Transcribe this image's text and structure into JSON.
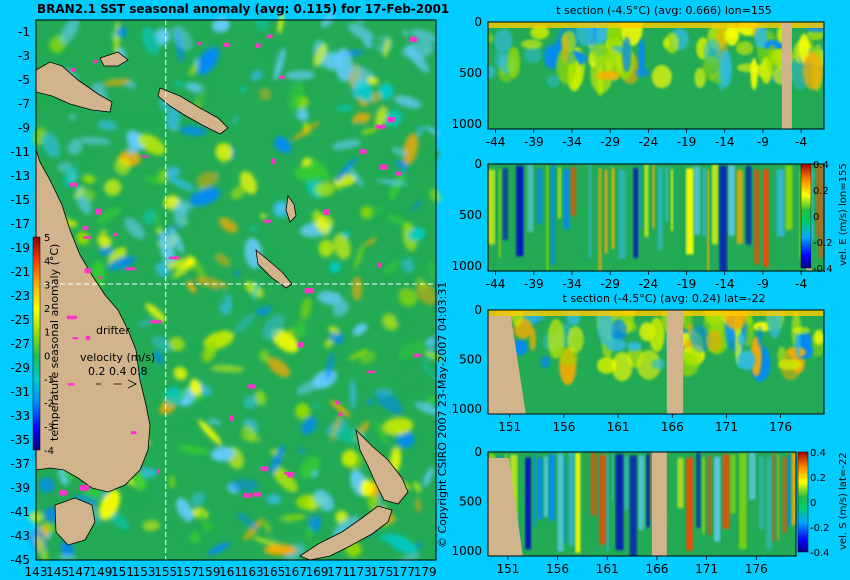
{
  "colors": {
    "background": "#00ccff",
    "land": "#d2b48c",
    "drifter": "#ff33cc",
    "ocean_base": "#22aa55",
    "colormap": [
      "#000080",
      "#0000ff",
      "#0088ff",
      "#00cccc",
      "#00cc66",
      "#33cc33",
      "#99dd00",
      "#ffff00",
      "#ffaa00",
      "#ff5500",
      "#cc0000",
      "#800000"
    ]
  },
  "copyright": "© Copyright CSIRO 2007   23-May-2007 04:03:31",
  "chart_data": [
    {
      "type": "heatmap",
      "panel": "map",
      "title": "BRAN2.1 SST seasonal anomaly (avg: 0.115) for 17-Feb-2001",
      "xlabel": "",
      "ylabel": "",
      "x_ticks": [
        "143",
        "145",
        "147",
        "149",
        "151",
        "153",
        "155",
        "157",
        "159",
        "161",
        "163",
        "165",
        "167",
        "169",
        "171",
        "173",
        "175",
        "177",
        "179"
      ],
      "y_ticks": [
        "-1",
        "-3",
        "-5",
        "-7",
        "-9",
        "-11",
        "-13",
        "-15",
        "-17",
        "-19",
        "-21",
        "-23",
        "-25",
        "-27",
        "-29",
        "-31",
        "-33",
        "-35",
        "-37",
        "-39",
        "-41",
        "-43",
        "-45"
      ],
      "xlim": [
        143,
        180
      ],
      "ylim": [
        -45,
        0
      ],
      "crosshair": {
        "lon": 155,
        "lat": -22
      },
      "colorbar": {
        "label": "temperature seasonal anomaly (°C)",
        "ticks": [
          "5",
          "4",
          "3",
          "2",
          "1",
          "0",
          "-1",
          "-2",
          "-3",
          "-4"
        ],
        "range": [
          -4,
          5
        ]
      },
      "legend": {
        "drifter_label": "drifter",
        "velocity_label": "velocity (m/s)",
        "velocity_values": "0.2  0.4  0.8"
      }
    },
    {
      "type": "heatmap",
      "panel": "t-section-lon",
      "title": "t section (-4.5°C) (avg: 0.666) lon=155",
      "x_ticks": [
        "-44",
        "-39",
        "-34",
        "-29",
        "-24",
        "-19",
        "-14",
        "-9",
        "-4"
      ],
      "y_ticks": [
        "0",
        "500",
        "1000"
      ],
      "xlim": [
        -45,
        -1
      ],
      "ylim": [
        1050,
        0
      ]
    },
    {
      "type": "heatmap",
      "panel": "vel-e-section",
      "title": "",
      "x_ticks": [
        "-44",
        "-39",
        "-34",
        "-29",
        "-24",
        "-19",
        "-14",
        "-9",
        "-4"
      ],
      "y_ticks": [
        "0",
        "500",
        "1000"
      ],
      "xlim": [
        -45,
        -1
      ],
      "ylim": [
        1050,
        0
      ],
      "colorbar": {
        "label": "vel. E (m/s)  lon=155",
        "ticks": [
          "0.4",
          "0.2",
          "0",
          "-0.2",
          "-0.4"
        ],
        "range": [
          -0.4,
          0.4
        ]
      }
    },
    {
      "type": "heatmap",
      "panel": "t-section-lat",
      "title": "t section (-4.5°C) (avg: 0.24) lat=-22",
      "x_ticks": [
        "151",
        "156",
        "161",
        "166",
        "171",
        "176"
      ],
      "y_ticks": [
        "0",
        "500",
        "1000"
      ],
      "xlim": [
        149,
        180
      ],
      "ylim": [
        1050,
        0
      ]
    },
    {
      "type": "heatmap",
      "panel": "vel-s-section",
      "title": "",
      "x_ticks": [
        "151",
        "156",
        "161",
        "166",
        "171",
        "176"
      ],
      "y_ticks": [
        "0",
        "500",
        "1000"
      ],
      "xlim": [
        149,
        180
      ],
      "ylim": [
        1050,
        0
      ],
      "colorbar": {
        "label": "vel. S (m/s)  lat=-22",
        "ticks": [
          "0.4",
          "0.2",
          "0",
          "-0.2",
          "-0.4"
        ],
        "range": [
          -0.4,
          0.4
        ]
      }
    }
  ]
}
